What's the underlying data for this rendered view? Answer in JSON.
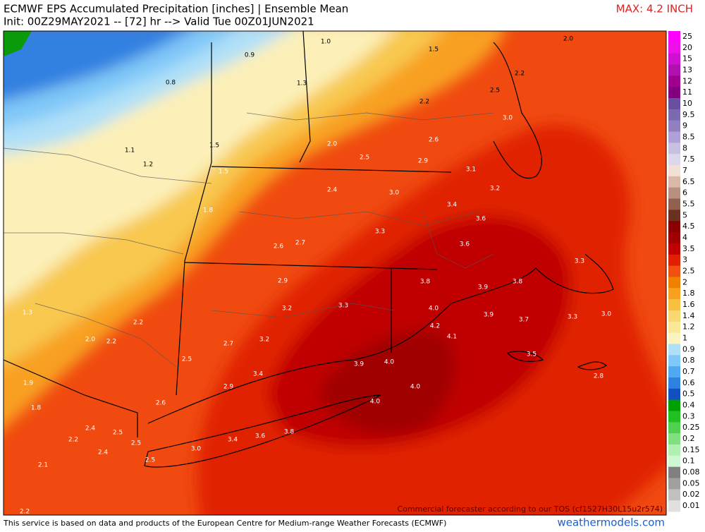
{
  "header": {
    "title": "ECMWF EPS Accumulated Precipitation [inches] | Ensemble Mean",
    "subtitle": "Init: 00Z29MAY2021 -- [72] hr --> Valid Tue 00Z01JUN2021",
    "max_label": "MAX: 4.2 INCH"
  },
  "map": {
    "values": [
      "0.9",
      "0.8",
      "1.0",
      "1.5",
      "2.0",
      "1.3",
      "2.2",
      "2.5",
      "2.2",
      "1.1",
      "1.2",
      "1.5",
      "2.0",
      "2.5",
      "2.6",
      "2.9",
      "3.0",
      "3.1",
      "1.5",
      "2.4",
      "3.0",
      "3.2",
      "3.4",
      "1.8",
      "3.3",
      "3.6",
      "2.6",
      "2.7",
      "3.6",
      "3.3",
      "2.9",
      "3.8",
      "3.9",
      "3.8",
      "3.2",
      "3.3",
      "4.0",
      "3.9",
      "3.7",
      "3.3",
      "3.0",
      "1.3",
      "2.2",
      "4.2",
      "4.1",
      "2.0",
      "2.2",
      "2.7",
      "3.2",
      "3.5",
      "2.5",
      "3.9",
      "4.0",
      "3.4",
      "1.9",
      "2.8",
      "2.9",
      "4.0",
      "2.6",
      "4.0",
      "1.8",
      "2.4",
      "2.5",
      "3.8",
      "3.6",
      "3.4",
      "2.2",
      "2.5",
      "2.4",
      "3.0",
      "2.5",
      "2.1",
      "2.2"
    ],
    "notice": "Commercial forecaster according to our TOS (cf1527H30L15u2r574)"
  },
  "colorbar": {
    "labels": [
      "25",
      "20",
      "15",
      "13",
      "12",
      "11",
      "10",
      "9.5",
      "9",
      "8.5",
      "8",
      "7.5",
      "7",
      "6.5",
      "6",
      "5.5",
      "5",
      "4.5",
      "4",
      "3.5",
      "3",
      "2.5",
      "2",
      "1.8",
      "1.6",
      "1.4",
      "1.2",
      "1",
      "0.9",
      "0.8",
      "0.7",
      "0.6",
      "0.5",
      "0.4",
      "0.3",
      "0.25",
      "0.2",
      "0.15",
      "0.1",
      "0.08",
      "0.05",
      "0.02",
      "0.01"
    ],
    "colors": [
      "#ff00ff",
      "#ee10e8",
      "#d010d0",
      "#b010b0",
      "#a00090",
      "#800080",
      "#6a4fa0",
      "#7a6ab0",
      "#9080c0",
      "#b0a0d8",
      "#c8c0e0",
      "#dcd8ec",
      "#f0e0d8",
      "#d8b8a8",
      "#b89080",
      "#906050",
      "#6a3020",
      "#8a0000",
      "#a00000",
      "#c00000",
      "#e02000",
      "#f05010",
      "#f08000",
      "#f8a020",
      "#f8c040",
      "#f8d870",
      "#f8e898",
      "#fcf4c0",
      "#b0e0f8",
      "#80c8f8",
      "#50a8f0",
      "#3080e0",
      "#1050c0",
      "#00a000",
      "#20c020",
      "#50d050",
      "#80e080",
      "#b0f0b0",
      "#d0f8d0",
      "#808080",
      "#a0a0a0",
      "#c0c0c0",
      "#e0e0e0"
    ]
  },
  "footer": {
    "source": "This service is based on data and products of the European Centre for Medium-range Weather Forecasts (ECMWF)",
    "site": "weathermodels.com"
  }
}
